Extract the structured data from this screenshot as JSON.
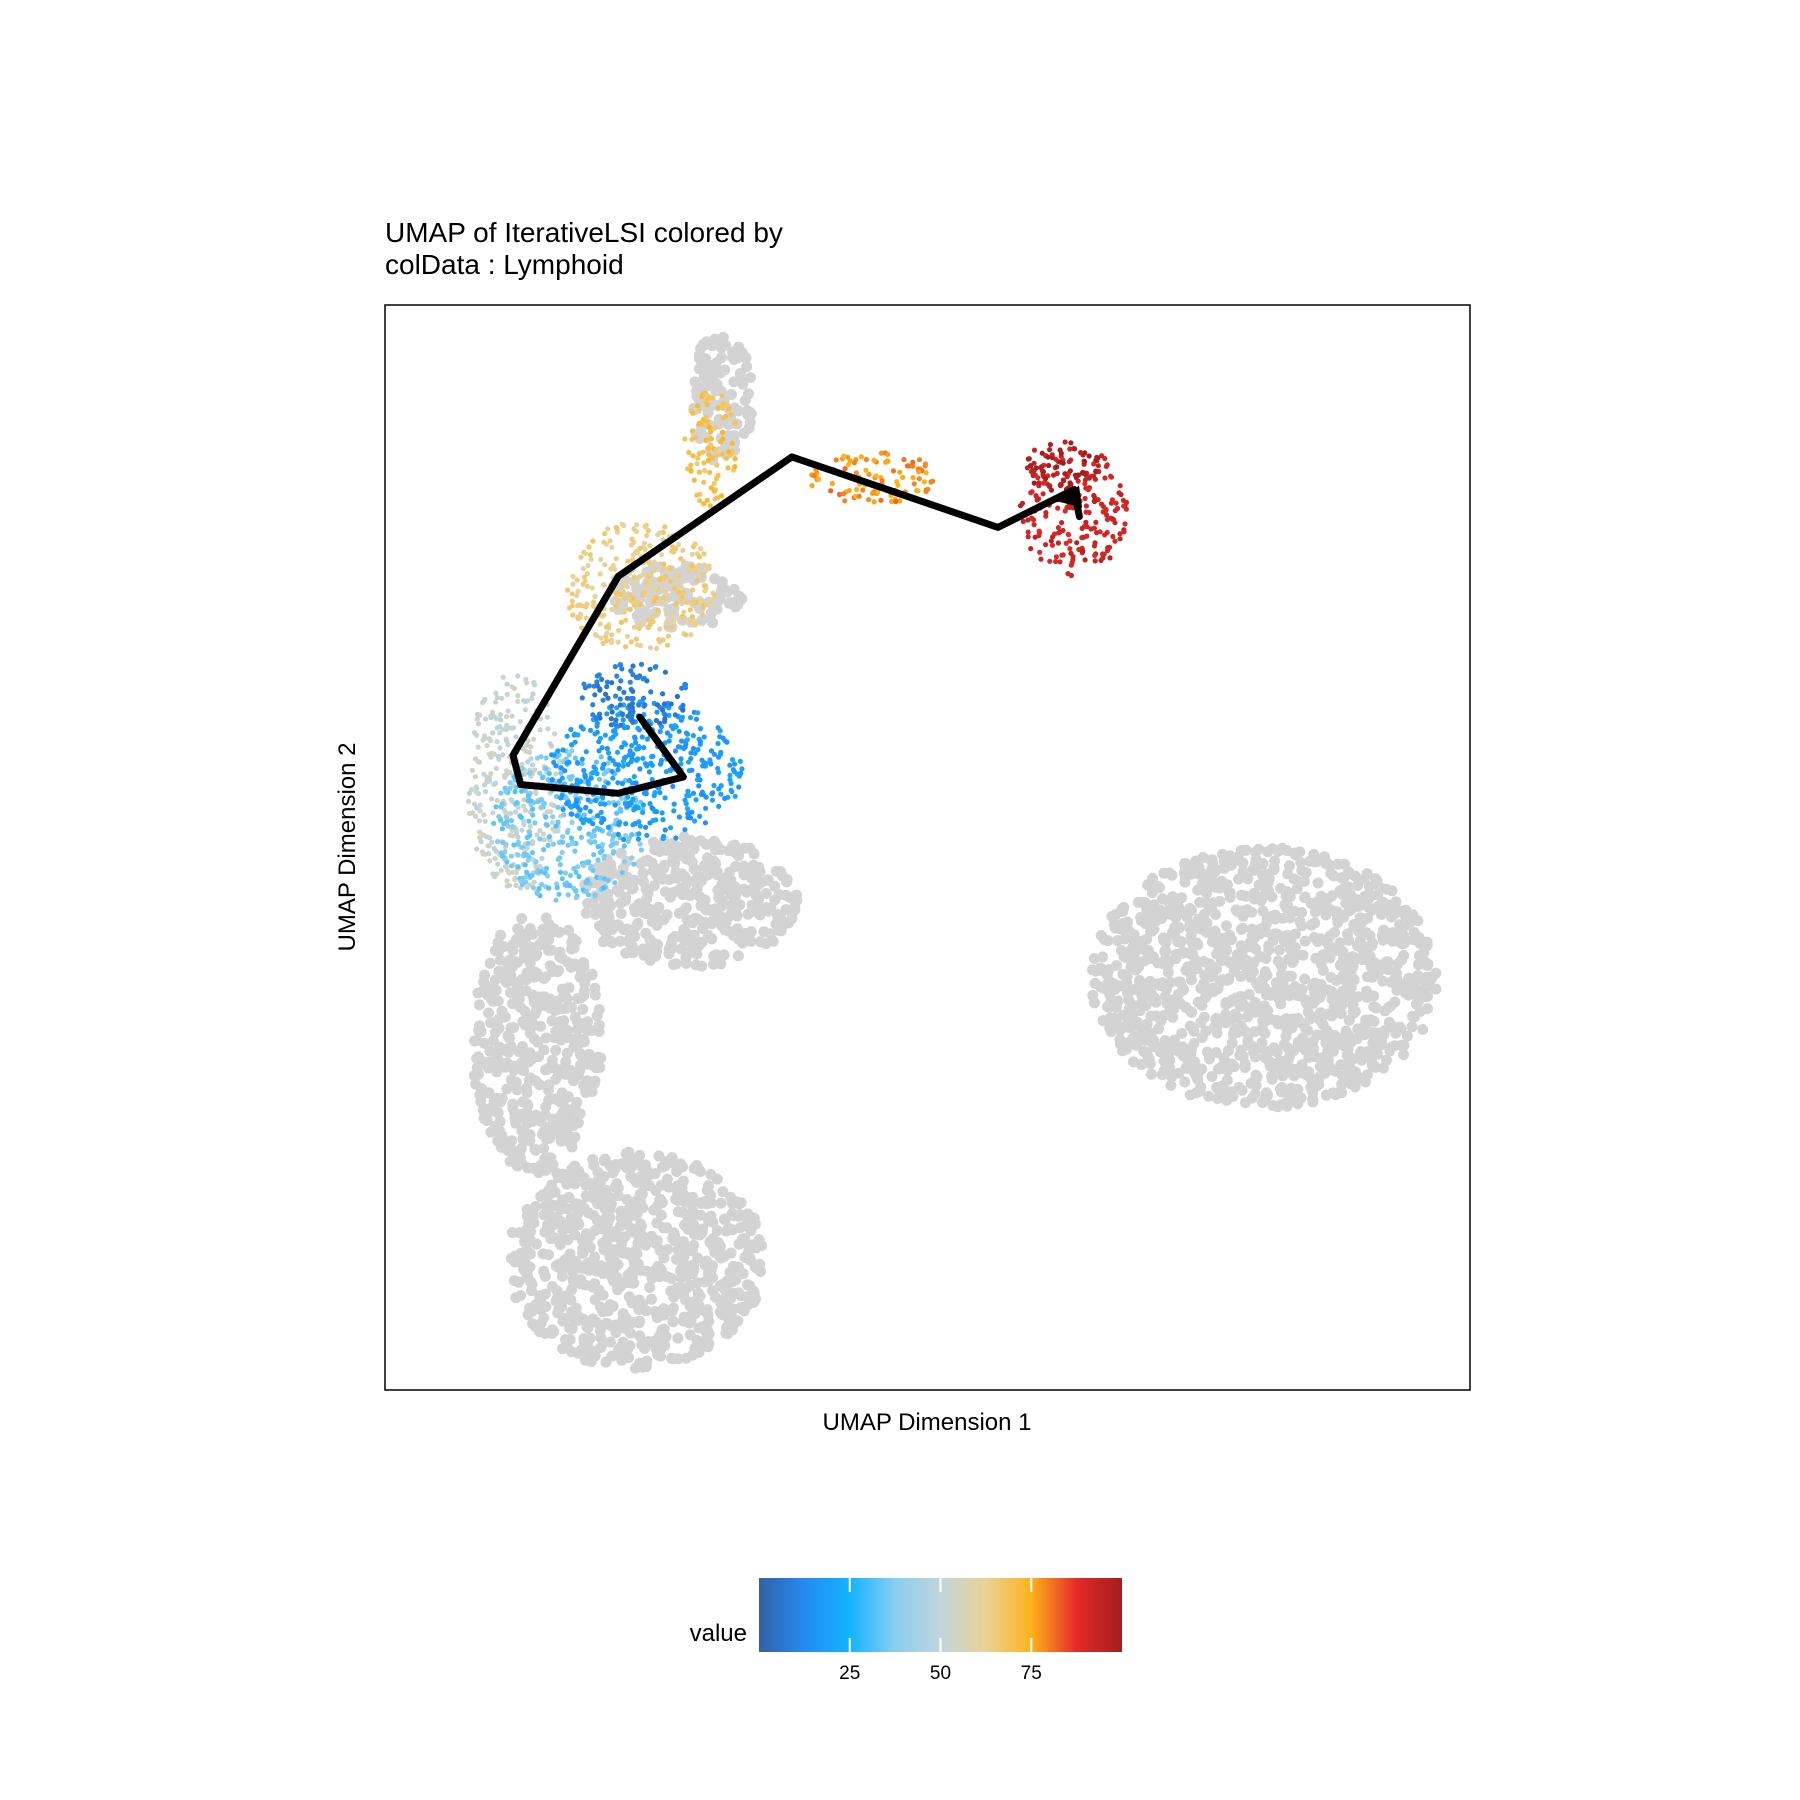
{
  "chart_data": {
    "type": "scatter",
    "title_line1": "UMAP of IterativeLSI  colored by",
    "title_line2": "colData :  Lymphoid",
    "xlabel": "UMAP Dimension 1",
    "ylabel": "UMAP Dimension 2",
    "x_range": [
      0,
      100
    ],
    "y_range": [
      0,
      100
    ],
    "grid": false,
    "legend": {
      "title": "value",
      "placement": "bottom",
      "range": [
        0,
        100
      ],
      "ticks": [
        25,
        50,
        75
      ],
      "tick_labels": [
        "25",
        "50",
        "75"
      ]
    },
    "palette": [
      "#3361A5",
      "#248AF3",
      "#14B3FF",
      "#88CEEF",
      "#C1D5DC",
      "#EAD397",
      "#FDB31A",
      "#E42A2A",
      "#A31D1D"
    ],
    "background_color": "#D3D3D3",
    "trajectory": {
      "x": [
        23.5,
        27.5,
        21.5,
        12.5,
        11.8,
        21.5,
        37.5,
        56.5,
        63.5,
        64
      ],
      "y": [
        62,
        56.5,
        55,
        55.8,
        58.5,
        75,
        86,
        79.5,
        83,
        80.5
      ]
    },
    "background_regions": [
      {
        "name": "bottom-left-cluster",
        "cx": 23,
        "cy": 12,
        "rx": 12,
        "ry": 10
      },
      {
        "name": "lower-arm",
        "cx": 14,
        "cy": 32,
        "rx": 6,
        "ry": 12
      },
      {
        "name": "right-cluster",
        "cx": 81,
        "cy": 38,
        "rx": 16,
        "ry": 12
      },
      {
        "name": "top-tip",
        "cx": 31,
        "cy": 91.5,
        "rx": 3,
        "ry": 6
      },
      {
        "name": "mid-blob",
        "cx": 27,
        "cy": 73,
        "rx": 6,
        "ry": 3
      },
      {
        "name": "under-blue",
        "cx": 28,
        "cy": 45,
        "rx": 10,
        "ry": 6
      }
    ],
    "colored_regions": [
      {
        "name": "lymphoid-red",
        "cx": 63.5,
        "cy": 81,
        "rx": 5,
        "ry": 6,
        "value": 92
      },
      {
        "name": "lymphoid-red-dark",
        "cx": 62.5,
        "cy": 85,
        "rx": 3.5,
        "ry": 2.5,
        "value": 98
      },
      {
        "name": "lymphoid-orange",
        "cx": 45,
        "cy": 84,
        "rx": 6,
        "ry": 2.5,
        "value": 78
      },
      {
        "name": "lymphoid-amber",
        "cx": 30,
        "cy": 87,
        "rx": 2.5,
        "ry": 5.5,
        "value": 70
      },
      {
        "name": "lymphoid-yellow",
        "cx": 23.5,
        "cy": 74,
        "rx": 7,
        "ry": 6,
        "value": 64
      },
      {
        "name": "lymphoid-cream",
        "cx": 12,
        "cy": 56,
        "rx": 4.5,
        "ry": 10,
        "value": 52
      },
      {
        "name": "lymphoid-lightblue",
        "cx": 17,
        "cy": 52,
        "rx": 7,
        "ry": 7,
        "value": 35
      },
      {
        "name": "lymphoid-blue",
        "cx": 24,
        "cy": 57,
        "rx": 9,
        "ry": 6.5,
        "value": 18
      },
      {
        "name": "lymphoid-darkblue",
        "cx": 23,
        "cy": 64,
        "rx": 5,
        "ry": 3,
        "value": 8
      }
    ]
  }
}
